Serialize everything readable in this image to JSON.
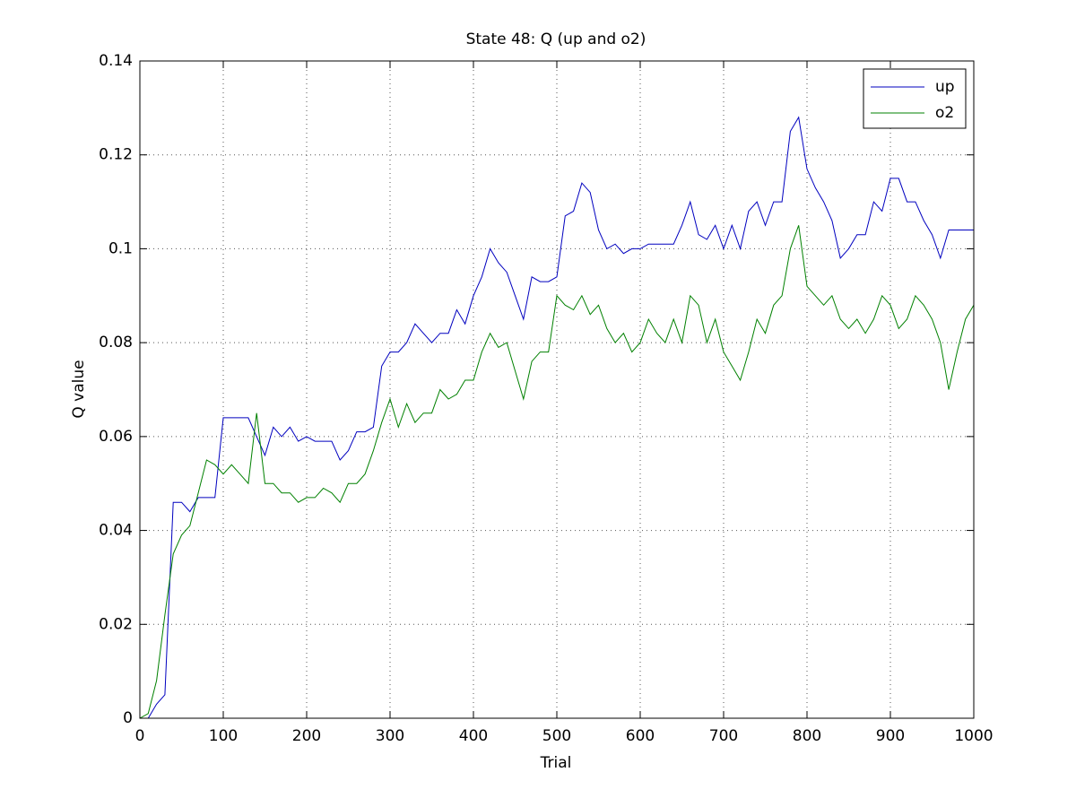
{
  "chart_data": {
    "type": "line",
    "title": "State 48: Q (up and o2)",
    "xlabel": "Trial",
    "ylabel": "Q value",
    "x": [
      0,
      10,
      20,
      30,
      40,
      50,
      60,
      70,
      80,
      90,
      100,
      110,
      120,
      130,
      140,
      150,
      160,
      170,
      180,
      190,
      200,
      210,
      220,
      230,
      240,
      250,
      260,
      270,
      280,
      290,
      300,
      310,
      320,
      330,
      340,
      350,
      360,
      370,
      380,
      390,
      400,
      410,
      420,
      430,
      440,
      450,
      460,
      470,
      480,
      490,
      500,
      510,
      520,
      530,
      540,
      550,
      560,
      570,
      580,
      590,
      600,
      610,
      620,
      630,
      640,
      650,
      660,
      670,
      680,
      690,
      700,
      710,
      720,
      730,
      740,
      750,
      760,
      770,
      780,
      790,
      800,
      810,
      820,
      830,
      840,
      850,
      860,
      870,
      880,
      890,
      900,
      910,
      920,
      930,
      940,
      950,
      960,
      970,
      980,
      990,
      1000
    ],
    "series": [
      {
        "name": "up",
        "color": "#0000bf",
        "values": [
          0,
          0,
          0.003,
          0.005,
          0.046,
          0.046,
          0.044,
          0.047,
          0.047,
          0.047,
          0.064,
          0.064,
          0.064,
          0.064,
          0.06,
          0.056,
          0.062,
          0.06,
          0.062,
          0.059,
          0.06,
          0.059,
          0.059,
          0.059,
          0.055,
          0.057,
          0.061,
          0.061,
          0.062,
          0.075,
          0.078,
          0.078,
          0.08,
          0.084,
          0.082,
          0.08,
          0.082,
          0.082,
          0.087,
          0.084,
          0.09,
          0.094,
          0.1,
          0.097,
          0.095,
          0.09,
          0.085,
          0.094,
          0.093,
          0.093,
          0.094,
          0.107,
          0.108,
          0.114,
          0.112,
          0.104,
          0.1,
          0.101,
          0.099,
          0.1,
          0.1,
          0.101,
          0.101,
          0.101,
          0.101,
          0.105,
          0.11,
          0.103,
          0.102,
          0.105,
          0.1,
          0.105,
          0.1,
          0.108,
          0.11,
          0.105,
          0.11,
          0.11,
          0.125,
          0.128,
          0.117,
          0.113,
          0.11,
          0.106,
          0.098,
          0.1,
          0.103,
          0.103,
          0.11,
          0.108,
          0.115,
          0.115,
          0.11,
          0.11,
          0.106,
          0.103,
          0.098,
          0.104,
          0.104,
          0.104,
          0.104
        ]
      },
      {
        "name": "o2",
        "color": "#008000",
        "values": [
          0,
          0.001,
          0.008,
          0.022,
          0.035,
          0.039,
          0.041,
          0.048,
          0.055,
          0.054,
          0.052,
          0.054,
          0.052,
          0.05,
          0.065,
          0.05,
          0.05,
          0.048,
          0.048,
          0.046,
          0.047,
          0.047,
          0.049,
          0.048,
          0.046,
          0.05,
          0.05,
          0.052,
          0.057,
          0.063,
          0.068,
          0.062,
          0.067,
          0.063,
          0.065,
          0.065,
          0.07,
          0.068,
          0.069,
          0.072,
          0.072,
          0.078,
          0.082,
          0.079,
          0.08,
          0.074,
          0.068,
          0.076,
          0.078,
          0.078,
          0.09,
          0.088,
          0.087,
          0.09,
          0.086,
          0.088,
          0.083,
          0.08,
          0.082,
          0.078,
          0.08,
          0.085,
          0.082,
          0.08,
          0.085,
          0.08,
          0.09,
          0.088,
          0.08,
          0.085,
          0.078,
          0.075,
          0.072,
          0.078,
          0.085,
          0.082,
          0.088,
          0.09,
          0.1,
          0.105,
          0.092,
          0.09,
          0.088,
          0.09,
          0.085,
          0.083,
          0.085,
          0.082,
          0.085,
          0.09,
          0.088,
          0.083,
          0.085,
          0.09,
          0.088,
          0.085,
          0.08,
          0.07,
          0.078,
          0.085,
          0.088
        ]
      }
    ],
    "xlim": [
      0,
      1000
    ],
    "xticks": [
      0,
      100,
      200,
      300,
      400,
      500,
      600,
      700,
      800,
      900,
      1000
    ],
    "ylim": [
      0,
      0.14
    ],
    "yticks": [
      0,
      0.02,
      0.04,
      0.06,
      0.08,
      0.1,
      0.12,
      0.14
    ],
    "grid": true,
    "legend": "upper-right"
  }
}
